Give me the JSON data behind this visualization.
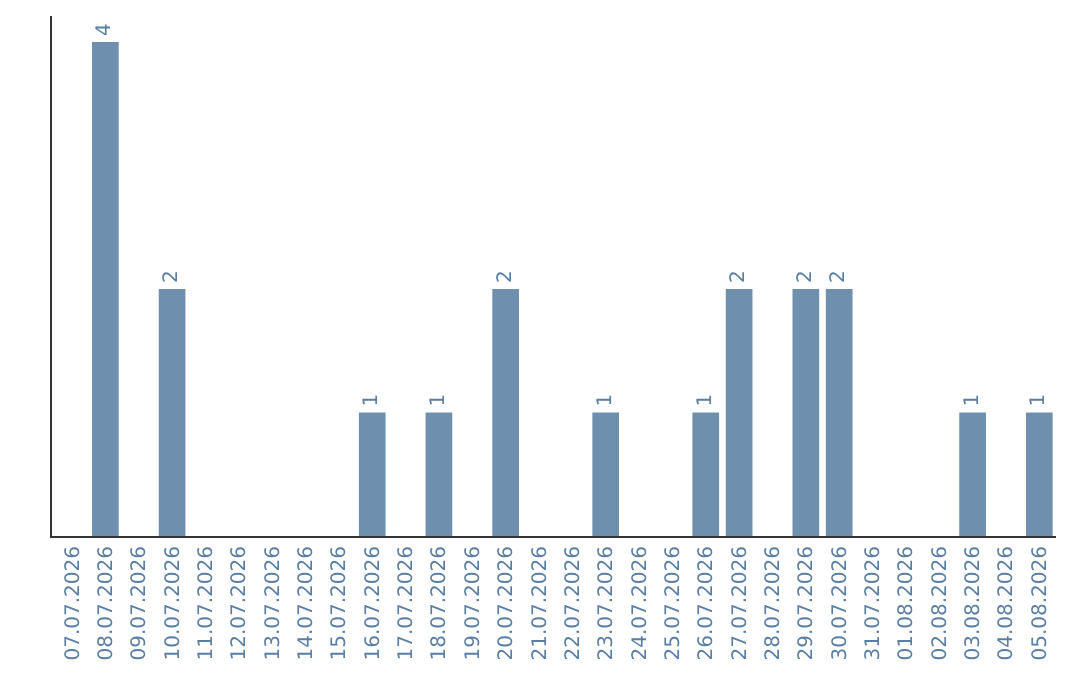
{
  "chart_data": {
    "type": "bar",
    "categories": [
      "07.07.2026",
      "08.07.2026",
      "09.07.2026",
      "10.07.2026",
      "11.07.2026",
      "12.07.2026",
      "13.07.2026",
      "14.07.2026",
      "15.07.2026",
      "16.07.2026",
      "17.07.2026",
      "18.07.2026",
      "19.07.2026",
      "20.07.2026",
      "21.07.2026",
      "22.07.2026",
      "23.07.2026",
      "24.07.2026",
      "25.07.2026",
      "26.07.2026",
      "27.07.2026",
      "28.07.2026",
      "29.07.2026",
      "30.07.2026",
      "31.07.2026",
      "01.08.2026",
      "02.08.2026",
      "03.08.2026",
      "04.08.2026",
      "05.08.2026"
    ],
    "values": [
      0,
      4,
      0,
      2,
      0,
      0,
      0,
      0,
      0,
      1,
      0,
      1,
      0,
      2,
      0,
      0,
      1,
      0,
      0,
      1,
      2,
      0,
      2,
      2,
      0,
      0,
      0,
      1,
      0,
      1
    ],
    "value_labels": [
      null,
      "4",
      null,
      "2",
      null,
      null,
      null,
      null,
      null,
      "1",
      null,
      "1",
      null,
      "2",
      null,
      null,
      "1",
      null,
      null,
      "1",
      "2",
      null,
      "2",
      "2",
      null,
      null,
      null,
      "1",
      null,
      "1"
    ],
    "color": "#6e8fae",
    "tick_labels": "x"
  }
}
